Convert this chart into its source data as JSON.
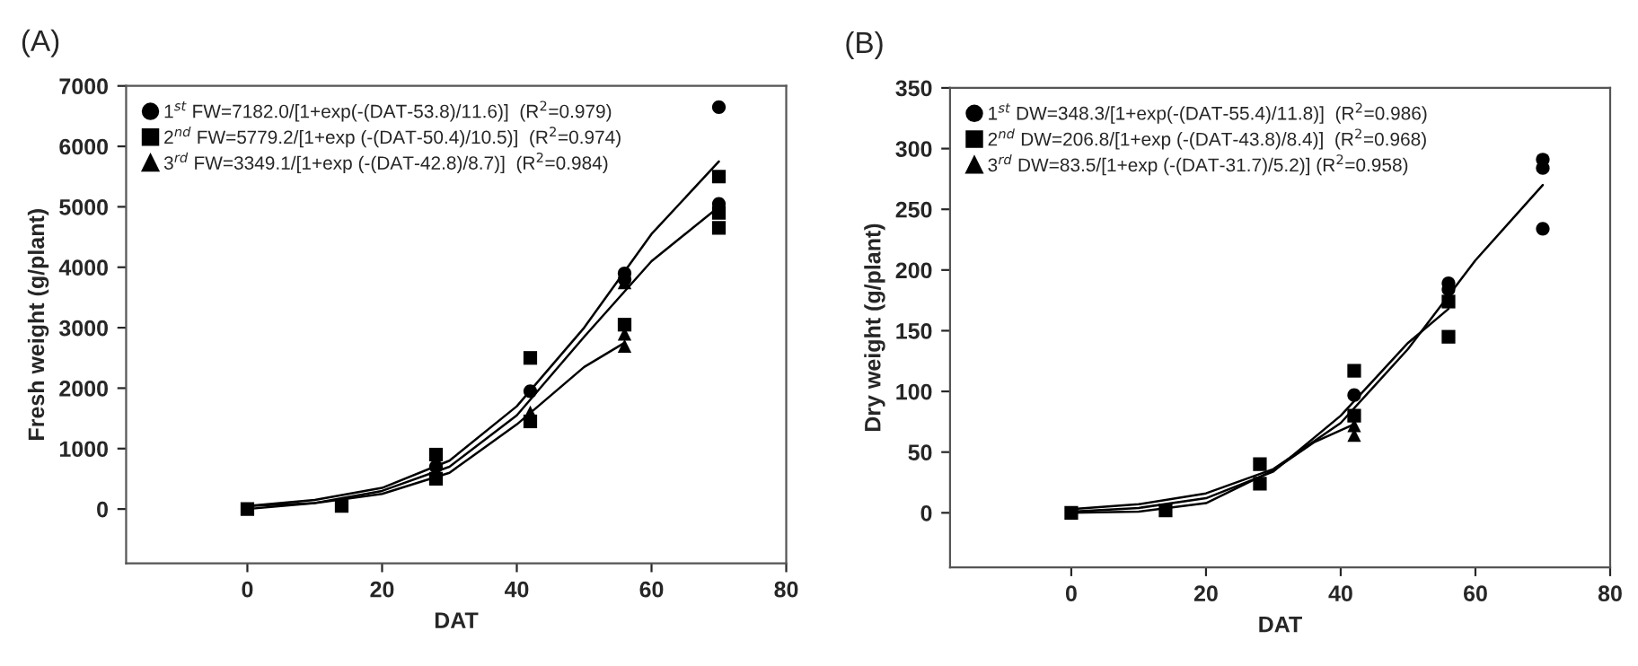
{
  "chart_data": [
    {
      "type": "scatter",
      "title": "(A)",
      "xlabel": "DAT",
      "ylabel": "Fresh weight (g/plant)",
      "xlim": [
        -18,
        80
      ],
      "ylim": [
        -900,
        7000
      ],
      "xticks": [
        0,
        20,
        40,
        60,
        80
      ],
      "yticks": [
        0,
        1000,
        2000,
        3000,
        4000,
        5000,
        6000,
        7000
      ],
      "legend": "top left",
      "grid": false,
      "series": [
        {
          "name": "1$^{st}$ FW=7182.0/[1+exp(-(DAT-53.8)/11.6)]  (R$^{2}$=0.979)",
          "color": "#000000",
          "marker": "circle",
          "x": [
            28,
            42,
            56,
            56,
            70,
            70
          ],
          "values": [
            700,
            1950,
            3900,
            3800,
            6650,
            5050
          ]
        },
        {
          "name": "2$^{nd}$ FW=5779.2/[1+exp (-(DAT-50.4)/10.5)]  (R$^{2}$=0.974)",
          "color": "#000000",
          "marker": "square",
          "x": [
            0,
            14,
            28,
            28,
            42,
            42,
            56,
            70,
            70,
            70
          ],
          "values": [
            0,
            50,
            900,
            500,
            2500,
            1450,
            3050,
            5500,
            4650,
            4900
          ]
        },
        {
          "name": "3$^{rd}$ FW=3349.1/[1+exp (-(DAT-42.8)/8.7)]  (R$^{2}$=0.984)",
          "color": "#000000",
          "marker": "triangle",
          "x": [
            42,
            56,
            56,
            56
          ],
          "values": [
            1600,
            2700,
            2900,
            3750
          ]
        },
        {
          "type": "line",
          "color": "#000000",
          "line_style": "solid",
          "x": [
            0,
            10,
            20,
            30,
            40,
            50,
            60,
            70
          ],
          "values": [
            50,
            150,
            350,
            800,
            1700,
            3000,
            4550,
            5750
          ]
        },
        {
          "type": "line",
          "color": "#000000",
          "line_style": "solid",
          "x": [
            0,
            10,
            20,
            30,
            40,
            50,
            60,
            70
          ],
          "values": [
            50,
            100,
            300,
            700,
            1550,
            2850,
            4100,
            5000
          ]
        },
        {
          "type": "line",
          "color": "#000000",
          "line_style": "solid",
          "x": [
            0,
            10,
            20,
            30,
            40,
            50,
            56
          ],
          "values": [
            0,
            100,
            250,
            600,
            1400,
            2350,
            2750
          ]
        }
      ]
    },
    {
      "type": "scatter",
      "title": "(B)",
      "xlabel": "DAT",
      "ylabel": "Dry weight (g/plant)",
      "xlim": [
        -18,
        80
      ],
      "ylim": [
        -45,
        350
      ],
      "xticks": [
        0,
        20,
        40,
        60,
        80
      ],
      "yticks": [
        0,
        50,
        100,
        150,
        200,
        250,
        300,
        350
      ],
      "legend": "top left",
      "grid": false,
      "series": [
        {
          "name": "1$^{st}$ DW=348.3/[1+exp(-(DAT-55.4)/11.8)]  (R$^{2}$=0.986)",
          "color": "#000000",
          "marker": "circle",
          "x": [
            42,
            56,
            56,
            70,
            70,
            70
          ],
          "values": [
            97,
            189,
            184,
            291,
            284,
            234
          ]
        },
        {
          "name": "2$^{nd}$ DW=206.8/[1+exp (-(DAT-43.8)/8.4)]  (R$^{2}$=0.968)",
          "color": "#000000",
          "marker": "square",
          "x": [
            0,
            14,
            28,
            28,
            42,
            42,
            56,
            56
          ],
          "values": [
            0,
            2,
            40,
            24,
            117,
            80,
            145,
            174
          ]
        },
        {
          "name": "3$^{rd}$ DW=83.5/[1+exp (-(DAT-31.7)/5.2)] (R$^{2}$=0.958)",
          "color": "#000000",
          "marker": "triangle",
          "x": [
            42,
            42
          ],
          "values": [
            64,
            72
          ]
        },
        {
          "type": "line",
          "color": "#000000",
          "line_style": "solid",
          "x": [
            0,
            10,
            20,
            30,
            40,
            50,
            60,
            70
          ],
          "values": [
            3,
            7,
            16,
            36,
            74,
            135,
            208,
            270
          ]
        },
        {
          "type": "line",
          "color": "#000000",
          "line_style": "solid",
          "x": [
            0,
            10,
            20,
            30,
            40,
            50,
            56
          ],
          "values": [
            1,
            4,
            12,
            34,
            80,
            140,
            168
          ]
        },
        {
          "type": "line",
          "color": "#000000",
          "line_style": "solid",
          "x": [
            0,
            10,
            20,
            30,
            36,
            42
          ],
          "values": [
            0,
            1,
            8,
            35,
            58,
            73
          ]
        }
      ]
    }
  ]
}
